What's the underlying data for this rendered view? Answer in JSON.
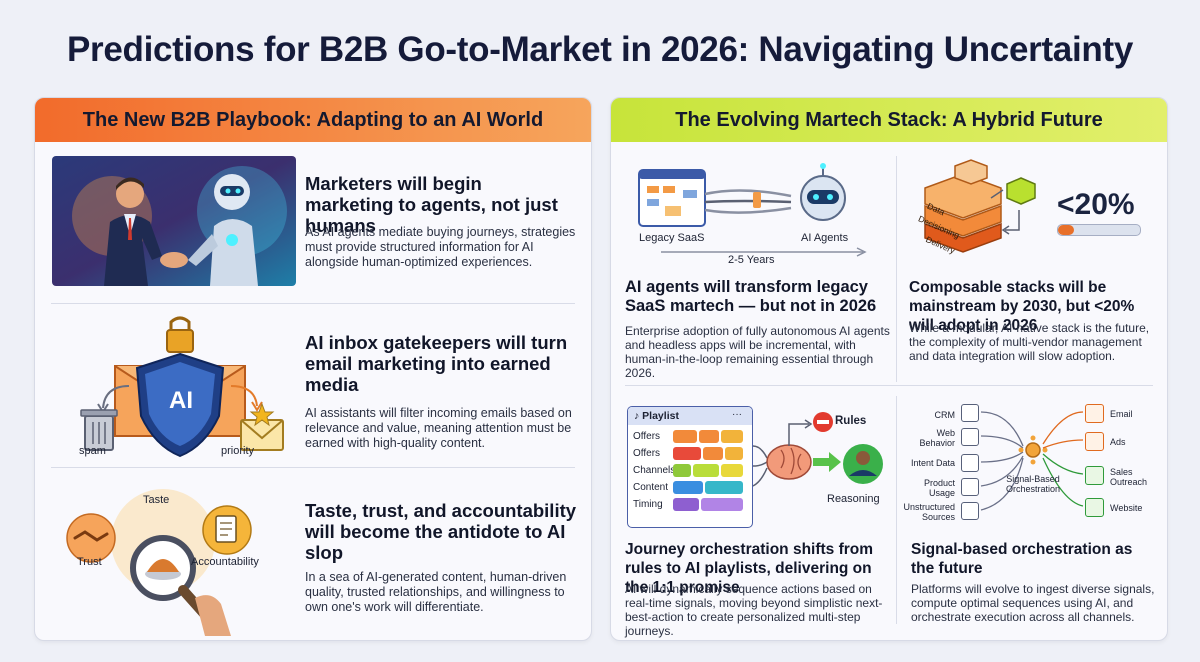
{
  "title": "Predictions for B2B Go-to-Market in 2026: Navigating Uncertainty",
  "left_panel": {
    "header": "The New B2B Playbook: Adapting to an AI World",
    "items": [
      {
        "heading": "Marketers will begin marketing to agents, not just humans",
        "body": "As AI agents mediate buying journeys, strategies must provide structured information for AI alongside human-optimized experiences."
      },
      {
        "heading": "AI inbox gatekeepers will turn email marketing into earned media",
        "body": "AI assistants will filter incoming emails based on relevance and value, meaning attention must be earned with high-quality content.",
        "labels": {
          "spam": "spam",
          "priority": "priority",
          "shield": "AI"
        }
      },
      {
        "heading": "Taste, trust, and accountability will become the antidote to AI slop",
        "body": "In a sea of AI-generated content, human-driven quality, trusted relationships, and willingness to own one's work will differentiate.",
        "labels": {
          "taste": "Taste",
          "trust": "Trust",
          "accountability": "Accountability"
        }
      }
    ]
  },
  "right_panel": {
    "header": "The Evolving Martech Stack: A Hybrid Future",
    "items": [
      {
        "heading": "AI agents will transform legacy SaaS martech — but not in 2026",
        "body": "Enterprise adoption of fully autonomous AI agents and headless apps will be incremental, with human-in-the-loop remaining essential through 2026.",
        "labels": {
          "legacy": "Legacy SaaS",
          "agents": "AI Agents",
          "years": "2-5 Years"
        }
      },
      {
        "heading": "Composable stacks will be mainstream by 2030, but <20% will adopt in 2026",
        "body": "While a modular, AI-native stack is the future, the complexity of multi-vendor management and data integration will slow adoption.",
        "labels": {
          "stat": "<20%",
          "layers": [
            "Data",
            "Decisioning",
            "Delivery"
          ]
        },
        "adoption_fraction": 0.2
      },
      {
        "heading": "Journey orchestration shifts from rules to AI playlists, delivering on the 1:1 promise",
        "body": "AI will dynamically sequence actions based on real-time signals, moving beyond simplistic next-best-action to create personalized multi-step journeys.",
        "labels": {
          "playlist": "Playlist",
          "more": "···",
          "rows": [
            "Offers",
            "Offers",
            "Channels",
            "Content",
            "Timing"
          ],
          "rules": "Rules",
          "reasoning": "Reasoning"
        }
      },
      {
        "heading": "Signal-based orchestration as the future",
        "body": "Platforms will evolve to ingest diverse signals, compute optimal sequences using AI, and orchestrate execution across all channels.",
        "labels": {
          "inputs": [
            "CRM",
            "Web Behavior",
            "Intent Data",
            "Product Usage",
            "Unstructured Sources"
          ],
          "center": "Signal-Based Orchestration",
          "outputs": [
            "Email",
            "Ads",
            "Sales Outreach",
            "Website"
          ]
        }
      }
    ]
  },
  "colors": {
    "left_accent": "#f26b2b",
    "right_accent": "#c7e43a",
    "title": "#151b3a"
  }
}
